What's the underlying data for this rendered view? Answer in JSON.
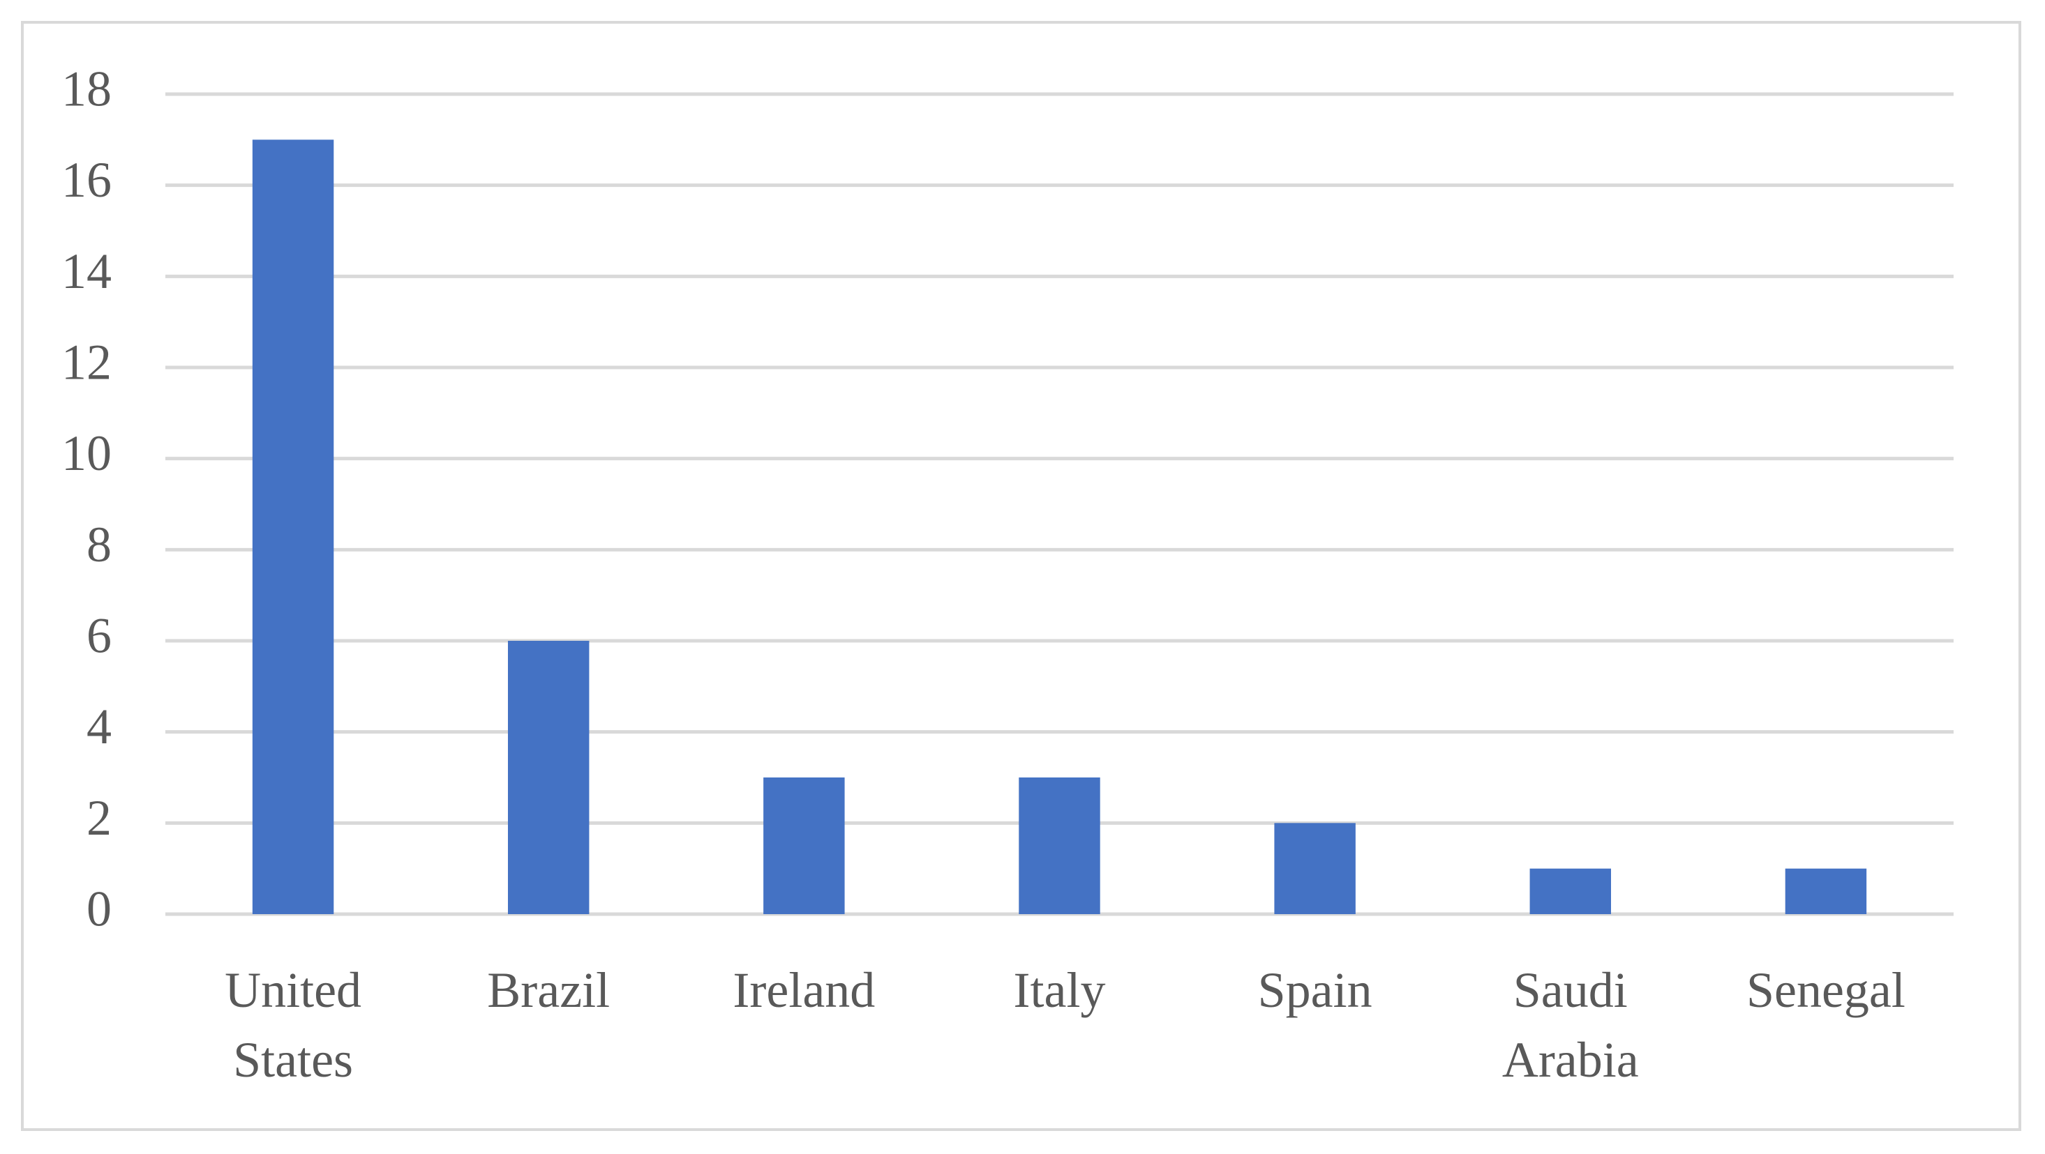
{
  "chart_data": {
    "type": "bar",
    "categories": [
      "United States",
      "Brazil",
      "Ireland",
      "Italy",
      "Spain",
      "Saudi Arabia",
      "Senegal"
    ],
    "values": [
      17,
      6,
      3,
      3,
      2,
      1,
      1
    ],
    "color": "#4472c4",
    "ylim": [
      0,
      18
    ],
    "yticks": [
      0,
      2,
      4,
      6,
      8,
      10,
      12,
      14,
      16,
      18
    ],
    "grid": true
  }
}
